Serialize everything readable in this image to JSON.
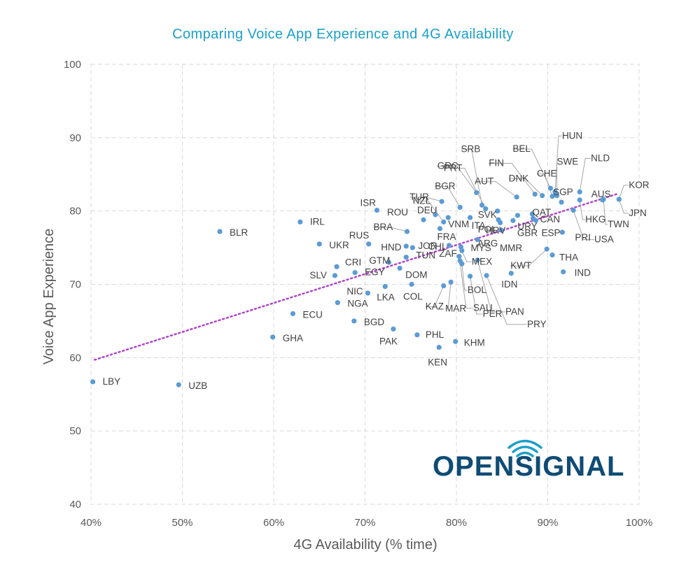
{
  "colors": {
    "title": "#1aa0c9",
    "points": "#5b9bd5",
    "trend": "#b23fd2",
    "logo": "#0f4c75",
    "logo_accent": "#1aa0c9"
  },
  "logo": {
    "text": "OPENSIGNAL",
    "icon": "signal-waves-icon"
  },
  "chart_data": {
    "type": "scatter",
    "title": "Comparing Voice App Experience and 4G Availability",
    "xlabel": "4G Availability (% time)",
    "ylabel": "Voice App Experience",
    "xlim": [
      40,
      100
    ],
    "ylim": [
      40,
      100
    ],
    "xticks": [
      "40%",
      "50%",
      "60%",
      "70%",
      "80%",
      "90%",
      "100%"
    ],
    "yticks": [
      "40",
      "50",
      "60",
      "70",
      "80",
      "90",
      "100"
    ],
    "grid": true,
    "trendline": {
      "style": "dotted",
      "x": [
        40.4,
        97.8
      ],
      "y": [
        59.7,
        82.4
      ]
    },
    "points": [
      {
        "label": "LBY",
        "x": 40.2,
        "y": 56.7
      },
      {
        "label": "UZB",
        "x": 49.6,
        "y": 56.3
      },
      {
        "label": "BLR",
        "x": 54.1,
        "y": 77.2
      },
      {
        "label": "GHA",
        "x": 59.9,
        "y": 62.8
      },
      {
        "label": "ECU",
        "x": 62.1,
        "y": 66.0
      },
      {
        "label": "IRL",
        "x": 62.9,
        "y": 78.5
      },
      {
        "label": "UKR",
        "x": 65.0,
        "y": 75.5
      },
      {
        "label": "SLV",
        "x": 66.7,
        "y": 71.2
      },
      {
        "label": "CRI",
        "x": 66.9,
        "y": 72.4
      },
      {
        "label": "NGA",
        "x": 67.0,
        "y": 67.5
      },
      {
        "label": "BGD",
        "x": 68.8,
        "y": 65.0
      },
      {
        "label": "EGY",
        "x": 68.9,
        "y": 71.6
      },
      {
        "label": "NIC",
        "x": 70.3,
        "y": 68.8
      },
      {
        "label": "RUS",
        "x": 70.4,
        "y": 75.5
      },
      {
        "label": "ISR",
        "x": 71.3,
        "y": 80.1
      },
      {
        "label": "LKA",
        "x": 72.2,
        "y": 69.7
      },
      {
        "label": "GTM",
        "x": 72.6,
        "y": 73.0
      },
      {
        "label": "PAK",
        "x": 73.1,
        "y": 63.9
      },
      {
        "label": "DOM",
        "x": 73.8,
        "y": 72.2
      },
      {
        "label": "HND",
        "x": 74.5,
        "y": 75.2
      },
      {
        "label": "TUN",
        "x": 74.5,
        "y": 73.7
      },
      {
        "label": "BRA",
        "x": 74.6,
        "y": 77.2
      },
      {
        "label": "COL",
        "x": 75.1,
        "y": 70.0
      },
      {
        "label": "JOR",
        "x": 75.2,
        "y": 75.0
      },
      {
        "label": "PHL",
        "x": 75.7,
        "y": 63.1
      },
      {
        "label": "ROU",
        "x": 76.4,
        "y": 78.8
      },
      {
        "label": "DEU",
        "x": 77.7,
        "y": 79.5
      },
      {
        "label": "KEN",
        "x": 78.1,
        "y": 61.4
      },
      {
        "label": "FRA",
        "x": 78.2,
        "y": 77.6
      },
      {
        "label": "TUR",
        "x": 78.4,
        "y": 81.3
      },
      {
        "label": "KAZ",
        "x": 78.6,
        "y": 69.8
      },
      {
        "label": "NZL",
        "x": 78.6,
        "y": 78.5
      },
      {
        "label": "VNM",
        "x": 79.1,
        "y": 79.1
      },
      {
        "label": "CHL",
        "x": 79.2,
        "y": 75.3
      },
      {
        "label": "MAR",
        "x": 79.4,
        "y": 70.3
      },
      {
        "label": "KHM",
        "x": 79.9,
        "y": 62.2
      },
      {
        "label": "SAU",
        "x": 80.3,
        "y": 73.8
      },
      {
        "label": "ZAF",
        "x": 80.4,
        "y": 73.2
      },
      {
        "label": "BGR",
        "x": 80.4,
        "y": 80.5
      },
      {
        "label": "MYS",
        "x": 80.5,
        "y": 75.1
      },
      {
        "label": "BOL",
        "x": 80.6,
        "y": 72.8
      },
      {
        "label": "MEX",
        "x": 80.6,
        "y": 74.6
      },
      {
        "label": "PER",
        "x": 81.5,
        "y": 71.1
      },
      {
        "label": "ITA",
        "x": 81.5,
        "y": 79.1
      },
      {
        "label": "GRC",
        "x": 82.2,
        "y": 82.5
      },
      {
        "label": "ARG",
        "x": 82.3,
        "y": 76.1
      },
      {
        "label": "PAN",
        "x": 82.3,
        "y": 73.3
      },
      {
        "label": "SRB",
        "x": 82.8,
        "y": 80.8
      },
      {
        "label": "PRT",
        "x": 83.2,
        "y": 80.3
      },
      {
        "label": "PRY",
        "x": 83.3,
        "y": 71.2
      },
      {
        "label": "SVK",
        "x": 84.5,
        "y": 80.0
      },
      {
        "label": "HRV",
        "x": 84.6,
        "y": 78.8
      },
      {
        "label": "POL",
        "x": 84.8,
        "y": 78.4
      },
      {
        "label": "MMR",
        "x": 84.9,
        "y": 77.4
      },
      {
        "label": "IDN",
        "x": 86.0,
        "y": 71.5
      },
      {
        "label": "GBR",
        "x": 86.2,
        "y": 78.7
      },
      {
        "label": "AUT",
        "x": 86.6,
        "y": 81.9
      },
      {
        "label": "URY",
        "x": 86.7,
        "y": 79.4
      },
      {
        "label": "QAT",
        "x": 88.3,
        "y": 79.6
      },
      {
        "label": "CAN",
        "x": 88.4,
        "y": 79.0
      },
      {
        "label": "FIN",
        "x": 88.6,
        "y": 82.3
      },
      {
        "label": "ESP",
        "x": 88.7,
        "y": 78.7
      },
      {
        "label": "DNK",
        "x": 89.4,
        "y": 82.1
      },
      {
        "label": "KWT",
        "x": 89.9,
        "y": 74.8
      },
      {
        "label": "BEL",
        "x": 90.3,
        "y": 83.1
      },
      {
        "label": "THA",
        "x": 90.5,
        "y": 74.0
      },
      {
        "label": "CHE",
        "x": 90.5,
        "y": 82.0
      },
      {
        "label": "HUN",
        "x": 90.8,
        "y": 82.6
      },
      {
        "label": "SGP",
        "x": 91.5,
        "y": 81.2
      },
      {
        "label": "PRI",
        "x": 91.6,
        "y": 77.1
      },
      {
        "label": "IND",
        "x": 91.7,
        "y": 71.7
      },
      {
        "label": "SWE",
        "x": 91.0,
        "y": 82.1
      },
      {
        "label": "USA",
        "x": 92.8,
        "y": 80.1
      },
      {
        "label": "NLD",
        "x": 93.5,
        "y": 82.6
      },
      {
        "label": "HKG",
        "x": 93.5,
        "y": 81.5
      },
      {
        "label": "AUS",
        "x": 96.0,
        "y": 81.5
      },
      {
        "label": "TWN",
        "x": 96.1,
        "y": 81.6
      },
      {
        "label": "KOR",
        "x": 97.8,
        "y": 81.6
      },
      {
        "label": "JPN",
        "x": 97.8,
        "y": 81.6
      }
    ]
  }
}
